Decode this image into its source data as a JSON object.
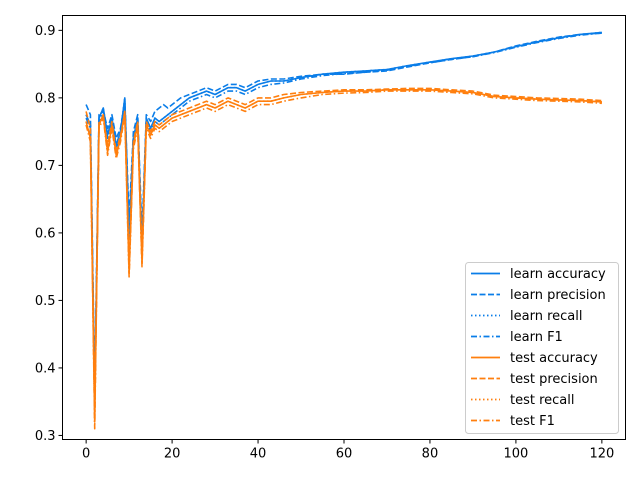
{
  "chart_data": {
    "type": "line",
    "title": "",
    "xlabel": "",
    "ylabel": "",
    "xlim": [
      -5.5,
      125.5
    ],
    "ylim": [
      0.294,
      0.922
    ],
    "xticks": [
      0,
      20,
      40,
      60,
      80,
      100,
      120
    ],
    "yticks": [
      0.3,
      0.4,
      0.5,
      0.6,
      0.7,
      0.8,
      0.9
    ],
    "grid": false,
    "legend_position": "lower-right",
    "colors": {
      "learn": "#1f77b4",
      "learn_bright": "#0a7de8",
      "test": "#ff7f0e"
    },
    "x": [
      0,
      1,
      2,
      3,
      4,
      5,
      6,
      7,
      8,
      9,
      10,
      11,
      12,
      13,
      14,
      15,
      16,
      17,
      18,
      19,
      20,
      22,
      24,
      26,
      28,
      30,
      33,
      35,
      37,
      40,
      43,
      46,
      50,
      55,
      60,
      65,
      70,
      75,
      80,
      85,
      90,
      95,
      100,
      105,
      110,
      115,
      120
    ],
    "series": [
      {
        "name": "learn accuracy",
        "color": "#0a7de8",
        "dash": "solid",
        "values": [
          0.775,
          0.76,
          0.35,
          0.77,
          0.785,
          0.745,
          0.77,
          0.73,
          0.75,
          0.8,
          0.6,
          0.74,
          0.77,
          0.58,
          0.77,
          0.755,
          0.77,
          0.765,
          0.77,
          0.775,
          0.78,
          0.79,
          0.8,
          0.805,
          0.81,
          0.805,
          0.815,
          0.815,
          0.81,
          0.82,
          0.825,
          0.825,
          0.83,
          0.835,
          0.838,
          0.84,
          0.842,
          0.848,
          0.853,
          0.858,
          0.862,
          0.868,
          0.876,
          0.883,
          0.889,
          0.894,
          0.897
        ]
      },
      {
        "name": "learn precision",
        "color": "#0a7de8",
        "dash": "dashed",
        "values": [
          0.79,
          0.775,
          0.37,
          0.775,
          0.78,
          0.755,
          0.775,
          0.74,
          0.755,
          0.795,
          0.62,
          0.75,
          0.775,
          0.6,
          0.775,
          0.765,
          0.78,
          0.785,
          0.79,
          0.785,
          0.79,
          0.8,
          0.805,
          0.81,
          0.815,
          0.81,
          0.82,
          0.82,
          0.815,
          0.825,
          0.828,
          0.828,
          0.832,
          0.835,
          0.835,
          0.838,
          0.84,
          0.846,
          0.852,
          0.857,
          0.861,
          0.868,
          0.877,
          0.884,
          0.89,
          0.894,
          0.896
        ]
      },
      {
        "name": "learn recall",
        "color": "#0a7de8",
        "dash": "dotted",
        "values": [
          0.775,
          0.76,
          0.35,
          0.77,
          0.785,
          0.745,
          0.77,
          0.73,
          0.75,
          0.8,
          0.6,
          0.74,
          0.77,
          0.58,
          0.77,
          0.755,
          0.77,
          0.765,
          0.77,
          0.775,
          0.78,
          0.79,
          0.8,
          0.805,
          0.81,
          0.805,
          0.815,
          0.815,
          0.81,
          0.82,
          0.825,
          0.825,
          0.83,
          0.835,
          0.838,
          0.84,
          0.842,
          0.848,
          0.853,
          0.858,
          0.862,
          0.868,
          0.876,
          0.883,
          0.889,
          0.894,
          0.897
        ]
      },
      {
        "name": "learn F1",
        "color": "#0a7de8",
        "dash": "dashdot",
        "values": [
          0.77,
          0.755,
          0.34,
          0.765,
          0.78,
          0.74,
          0.765,
          0.725,
          0.745,
          0.795,
          0.59,
          0.735,
          0.765,
          0.57,
          0.765,
          0.75,
          0.765,
          0.76,
          0.765,
          0.77,
          0.775,
          0.785,
          0.795,
          0.8,
          0.805,
          0.8,
          0.81,
          0.81,
          0.805,
          0.815,
          0.82,
          0.822,
          0.828,
          0.833,
          0.836,
          0.838,
          0.841,
          0.847,
          0.852,
          0.857,
          0.861,
          0.867,
          0.875,
          0.882,
          0.888,
          0.893,
          0.896
        ]
      },
      {
        "name": "test accuracy",
        "color": "#ff7f0e",
        "dash": "solid",
        "values": [
          0.765,
          0.74,
          0.32,
          0.76,
          0.775,
          0.72,
          0.76,
          0.715,
          0.74,
          0.78,
          0.54,
          0.73,
          0.76,
          0.555,
          0.76,
          0.745,
          0.76,
          0.755,
          0.76,
          0.765,
          0.77,
          0.775,
          0.78,
          0.785,
          0.79,
          0.785,
          0.795,
          0.79,
          0.785,
          0.795,
          0.795,
          0.8,
          0.805,
          0.808,
          0.81,
          0.81,
          0.812,
          0.812,
          0.812,
          0.81,
          0.808,
          0.802,
          0.8,
          0.798,
          0.797,
          0.796,
          0.794
        ]
      },
      {
        "name": "test precision",
        "color": "#ff7f0e",
        "dash": "dashed",
        "values": [
          0.78,
          0.755,
          0.34,
          0.765,
          0.77,
          0.73,
          0.765,
          0.72,
          0.745,
          0.775,
          0.56,
          0.735,
          0.765,
          0.57,
          0.765,
          0.75,
          0.765,
          0.76,
          0.765,
          0.77,
          0.775,
          0.78,
          0.785,
          0.79,
          0.795,
          0.79,
          0.8,
          0.795,
          0.79,
          0.8,
          0.8,
          0.805,
          0.808,
          0.81,
          0.812,
          0.812,
          0.813,
          0.814,
          0.814,
          0.812,
          0.81,
          0.804,
          0.802,
          0.8,
          0.799,
          0.798,
          0.796
        ]
      },
      {
        "name": "test recall",
        "color": "#ff7f0e",
        "dash": "dotted",
        "values": [
          0.765,
          0.74,
          0.32,
          0.76,
          0.775,
          0.72,
          0.76,
          0.715,
          0.74,
          0.78,
          0.54,
          0.73,
          0.76,
          0.555,
          0.76,
          0.745,
          0.76,
          0.755,
          0.76,
          0.765,
          0.77,
          0.775,
          0.78,
          0.785,
          0.79,
          0.785,
          0.795,
          0.79,
          0.785,
          0.795,
          0.795,
          0.8,
          0.805,
          0.808,
          0.81,
          0.81,
          0.812,
          0.812,
          0.812,
          0.81,
          0.808,
          0.802,
          0.8,
          0.798,
          0.797,
          0.796,
          0.794
        ]
      },
      {
        "name": "test F1",
        "color": "#ff7f0e",
        "dash": "dashdot",
        "values": [
          0.76,
          0.735,
          0.31,
          0.755,
          0.77,
          0.715,
          0.755,
          0.71,
          0.735,
          0.775,
          0.535,
          0.725,
          0.755,
          0.55,
          0.755,
          0.74,
          0.755,
          0.75,
          0.755,
          0.76,
          0.765,
          0.77,
          0.775,
          0.78,
          0.785,
          0.78,
          0.79,
          0.785,
          0.78,
          0.79,
          0.79,
          0.795,
          0.8,
          0.805,
          0.807,
          0.808,
          0.81,
          0.81,
          0.81,
          0.808,
          0.806,
          0.8,
          0.798,
          0.796,
          0.795,
          0.794,
          0.792
        ]
      }
    ]
  }
}
